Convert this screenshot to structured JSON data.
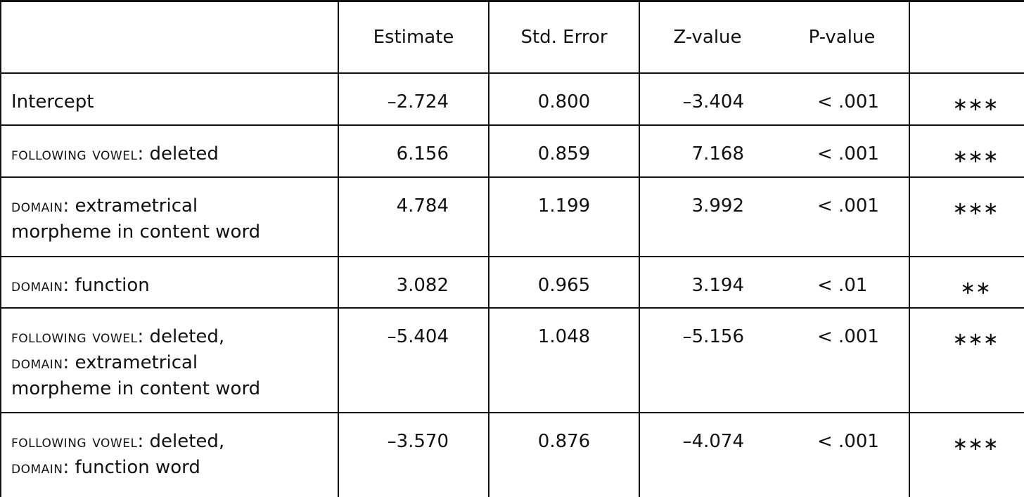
{
  "table": {
    "header": [
      "Estimate",
      "Std. Error",
      "Z-value",
      "P-value"
    ],
    "rows": [
      {
        "label": [
          [
            {
              "text": "Intercept",
              "small_caps": false
            }
          ]
        ],
        "cells": [
          "–2.724",
          "0.800",
          "–3.404",
          "< .001",
          "∗∗∗"
        ]
      },
      {
        "label": [
          [
            {
              "text": "following vowel",
              "small_caps": true
            },
            {
              "text": ": deleted",
              "small_caps": false
            }
          ]
        ],
        "cells": [
          "6.156",
          "0.859",
          "7.168",
          "< .001",
          "∗∗∗"
        ]
      },
      {
        "label": [
          [
            {
              "text": "domain",
              "small_caps": true
            },
            {
              "text": ": extrametrical",
              "small_caps": false
            }
          ],
          [
            {
              "text": "morpheme in content word",
              "small_caps": false
            }
          ]
        ],
        "cells": [
          "4.784",
          "1.199",
          "3.992",
          "< .001",
          "∗∗∗"
        ]
      },
      {
        "label": [
          [
            {
              "text": "domain",
              "small_caps": true
            },
            {
              "text": ": function",
              "small_caps": false
            }
          ]
        ],
        "cells": [
          "3.082",
          "0.965",
          "3.194",
          "< .01",
          "∗∗"
        ]
      },
      {
        "label": [
          [
            {
              "text": "following vowel",
              "small_caps": true
            },
            {
              "text": ": deleted,",
              "small_caps": false
            }
          ],
          [
            {
              "text": "domain",
              "small_caps": true
            },
            {
              "text": ": extrametrical",
              "small_caps": false
            }
          ],
          [
            {
              "text": "morpheme in content word",
              "small_caps": false
            }
          ]
        ],
        "cells": [
          "–5.404",
          "1.048",
          "–5.156",
          "< .001",
          "∗∗∗"
        ]
      },
      {
        "label": [
          [
            {
              "text": "following vowel",
              "small_caps": true
            },
            {
              "text": ": deleted,",
              "small_caps": false
            }
          ],
          [
            {
              "text": "domain",
              "small_caps": true
            },
            {
              "text": ": function word",
              "small_caps": false
            }
          ]
        ],
        "cells": [
          "–3.570",
          "0.876",
          "–4.074",
          "< .001",
          "∗∗∗"
        ]
      }
    ]
  }
}
